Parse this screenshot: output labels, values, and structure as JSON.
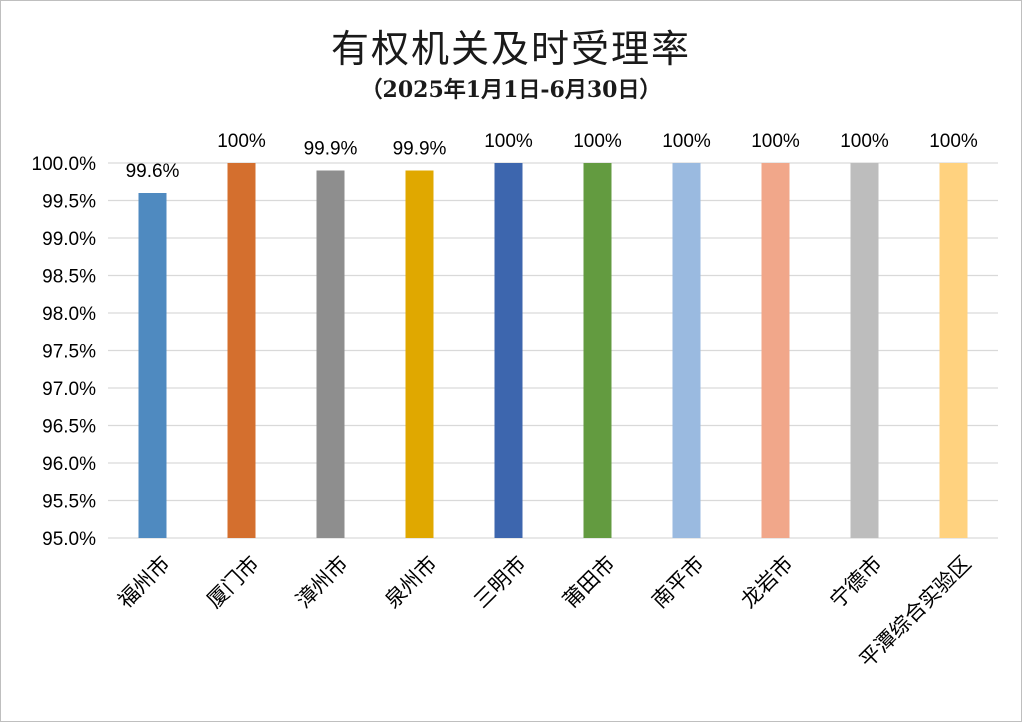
{
  "chart_data": {
    "type": "bar",
    "title": "有权机关及时受理率",
    "subtitle": "（2025年1月1日-6月30日）",
    "categories": [
      "福州市",
      "厦门市",
      "漳州市",
      "泉州市",
      "三明市",
      "莆田市",
      "南平市",
      "龙岩市",
      "宁德市",
      "平潭综合实验区"
    ],
    "values": [
      99.6,
      100,
      99.9,
      99.9,
      100,
      100,
      100,
      100,
      100,
      100
    ],
    "data_labels": [
      "99.6%",
      "100%",
      "99.9%",
      "99.9%",
      "100%",
      "100%",
      "100%",
      "100%",
      "100%",
      "100%"
    ],
    "colors": [
      "#4F8AC0",
      "#D46F2E",
      "#8E8E8E",
      "#E0A800",
      "#3D66AE",
      "#639B40",
      "#9ABAE0",
      "#F1A78A",
      "#BDBDBD",
      "#FFD27F"
    ],
    "ylim": [
      95.0,
      100.0
    ],
    "yticks": [
      95.0,
      95.5,
      96.0,
      96.5,
      97.0,
      97.5,
      98.0,
      98.5,
      99.0,
      99.5,
      100.0
    ],
    "ytick_labels": [
      "95.0%",
      "95.5%",
      "96.0%",
      "96.5%",
      "97.0%",
      "97.5%",
      "98.0%",
      "98.5%",
      "99.0%",
      "99.5%",
      "100.0%"
    ],
    "grid": true,
    "legend": "none"
  }
}
